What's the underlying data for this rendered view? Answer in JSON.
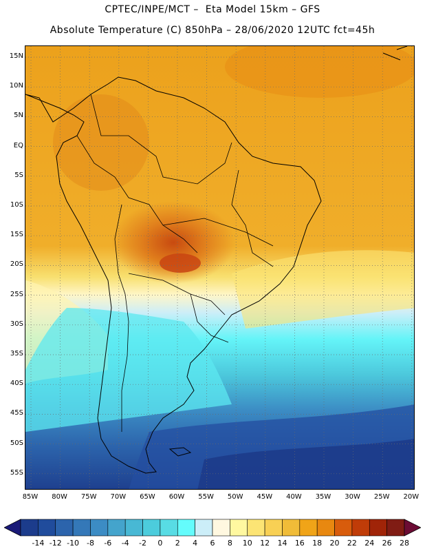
{
  "header": {
    "line1": "CPTEC/INPE/MCT –  Eta Model 15km – GFS",
    "line2": "Absolute Temperature (C) 850hPa – 28/06/2020 12UTC fct=45h"
  },
  "map": {
    "lat_labels": [
      "15N",
      "10N",
      "5N",
      "EQ",
      "5S",
      "10S",
      "15S",
      "20S",
      "25S",
      "30S",
      "35S",
      "40S",
      "45S",
      "50S",
      "55S"
    ],
    "lon_labels": [
      "85W",
      "80W",
      "75W",
      "70W",
      "65W",
      "60W",
      "55W",
      "50W",
      "45W",
      "40W",
      "35W",
      "30W",
      "25W",
      "20W"
    ]
  },
  "colorbar": {
    "ticks": [
      "-14",
      "-12",
      "-10",
      "-8",
      "-6",
      "-4",
      "-2",
      "0",
      "2",
      "4",
      "6",
      "8",
      "10",
      "12",
      "14",
      "16",
      "18",
      "20",
      "22",
      "24",
      "26",
      "28"
    ],
    "colors": [
      "#1c3c8c",
      "#204c9c",
      "#2c64ac",
      "#3478b8",
      "#3c8cc4",
      "#44a4cc",
      "#48b8d4",
      "#4cccdc",
      "#58dce4",
      "#64fcfc",
      "#cceef8",
      "#fff8e0",
      "#fff8a0",
      "#fce474",
      "#f8d054",
      "#f0bc38",
      "#f0a418",
      "#e88810",
      "#d85c0c",
      "#c03c08",
      "#a02408",
      "#801c14"
    ],
    "under_color": "#1a1a78",
    "over_color": "#6c0c34"
  }
}
